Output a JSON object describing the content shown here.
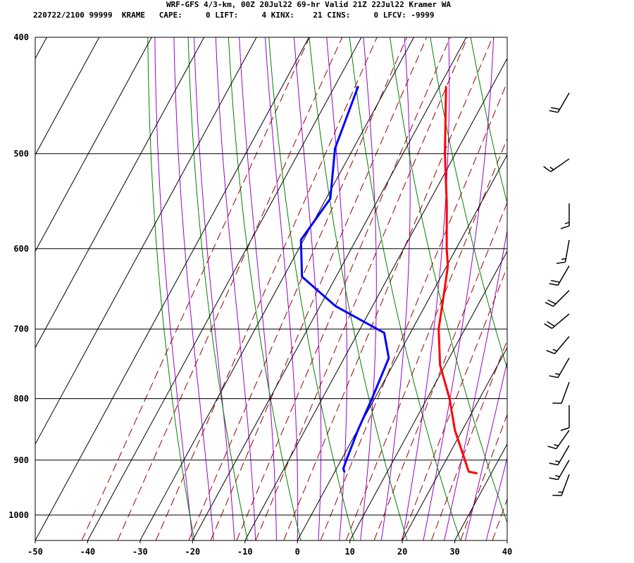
{
  "header": {
    "line1": "WRF-GFS 4/3-km, 00Z 20Jul22 69-hr Valid 21Z 22Jul22 Kramer WA",
    "line2": "220722/2100 99999  KRAME   CAPE:     0 LIFT:     4 KINX:    21 CINS:     0 LFCV: -9999"
  },
  "colors": {
    "isotherm": "#000000",
    "isobar": "#000000",
    "dry_adiabat": "#008000",
    "moist_adiabat": "#9900cc",
    "mixing_ratio": "#990000",
    "temperature": "#ff0000",
    "dewpoint": "#0000ff",
    "wind_barb": "#000000"
  },
  "chart_data": {
    "type": "line",
    "title": "",
    "xlabel": "",
    "ylabel": "",
    "x_tick_labels": [
      "-50",
      "-40",
      "-30",
      "-20",
      "-10",
      "0",
      "10",
      "20",
      "30",
      "40"
    ],
    "y_tick_labels": [
      "400",
      "500",
      "600",
      "700",
      "800",
      "900",
      "1000"
    ],
    "xlim": [
      -50,
      40
    ],
    "ylim": [
      1050,
      400
    ],
    "y_scale": "log-pressure",
    "grid": true,
    "series": [
      {
        "key": "temperature",
        "points": [
          {
            "p": 923,
            "t": 27.2
          },
          {
            "p": 920,
            "t": 25.5
          },
          {
            "p": 900,
            "t": 23.6
          },
          {
            "p": 850,
            "t": 18.6
          },
          {
            "p": 800,
            "t": 14.3
          },
          {
            "p": 750,
            "t": 9.0
          },
          {
            "p": 700,
            "t": 5.0
          },
          {
            "p": 650,
            "t": 2.1
          },
          {
            "p": 620,
            "t": 0.2
          },
          {
            "p": 600,
            "t": -1.8
          },
          {
            "p": 550,
            "t": -6.5
          },
          {
            "p": 500,
            "t": -12.0
          },
          {
            "p": 440,
            "t": -18.7
          }
        ]
      },
      {
        "key": "dewpoint",
        "points": [
          {
            "p": 920,
            "t": 1.8
          },
          {
            "p": 915,
            "t": 1.3
          },
          {
            "p": 900,
            "t": 1.0
          },
          {
            "p": 850,
            "t": 0.1
          },
          {
            "p": 800,
            "t": -0.5
          },
          {
            "p": 740,
            "t": -1.5
          },
          {
            "p": 705,
            "t": -5.0
          },
          {
            "p": 670,
            "t": -17.0
          },
          {
            "p": 633,
            "t": -26.5
          },
          {
            "p": 590,
            "t": -30.5
          },
          {
            "p": 545,
            "t": -29.2
          },
          {
            "p": 495,
            "t": -33.5
          },
          {
            "p": 440,
            "t": -35.5
          }
        ]
      }
    ],
    "wind_barbs": [
      {
        "p": 925,
        "dir": 200,
        "kt": 15
      },
      {
        "p": 900,
        "dir": 210,
        "kt": 15
      },
      {
        "p": 875,
        "dir": 210,
        "kt": 15
      },
      {
        "p": 850,
        "dir": 215,
        "kt": 15
      },
      {
        "p": 810,
        "dir": 180,
        "kt": 10
      },
      {
        "p": 775,
        "dir": 200,
        "kt": 10
      },
      {
        "p": 740,
        "dir": 210,
        "kt": 15
      },
      {
        "p": 710,
        "dir": 220,
        "kt": 15
      },
      {
        "p": 680,
        "dir": 230,
        "kt": 20
      },
      {
        "p": 650,
        "dir": 225,
        "kt": 20
      },
      {
        "p": 620,
        "dir": 210,
        "kt": 20
      },
      {
        "p": 590,
        "dir": 190,
        "kt": 15
      },
      {
        "p": 550,
        "dir": 180,
        "kt": 15
      },
      {
        "p": 505,
        "dir": 235,
        "kt": 15
      },
      {
        "p": 445,
        "dir": 210,
        "kt": 20
      }
    ]
  }
}
